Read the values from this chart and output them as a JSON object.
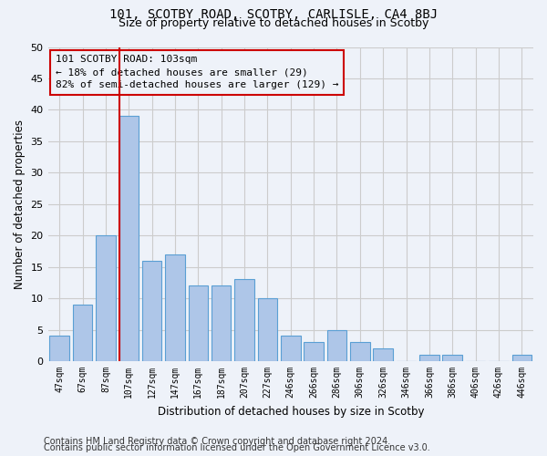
{
  "title_line1": "101, SCOTBY ROAD, SCOTBY, CARLISLE, CA4 8BJ",
  "title_line2": "Size of property relative to detached houses in Scotby",
  "xlabel": "Distribution of detached houses by size in Scotby",
  "ylabel": "Number of detached properties",
  "categories": [
    "47sqm",
    "67sqm",
    "87sqm",
    "107sqm",
    "127sqm",
    "147sqm",
    "167sqm",
    "187sqm",
    "207sqm",
    "227sqm",
    "246sqm",
    "266sqm",
    "286sqm",
    "306sqm",
    "326sqm",
    "346sqm",
    "366sqm",
    "386sqm",
    "406sqm",
    "426sqm",
    "446sqm"
  ],
  "values": [
    4,
    9,
    20,
    39,
    16,
    17,
    12,
    12,
    13,
    10,
    4,
    3,
    5,
    3,
    2,
    0,
    1,
    1,
    0,
    0,
    1
  ],
  "bar_color": "#aec6e8",
  "bar_edge_color": "#5a9fd4",
  "bar_edge_width": 0.8,
  "property_line_index": 3,
  "property_line_color": "#cc0000",
  "annotation_box_color": "#cc0000",
  "annotation_text_line1": "101 SCOTBY ROAD: 103sqm",
  "annotation_text_line2": "← 18% of detached houses are smaller (29)",
  "annotation_text_line3": "82% of semi-detached houses are larger (129) →",
  "annotation_fontsize": 8.0,
  "ylim": [
    0,
    50
  ],
  "yticks": [
    0,
    5,
    10,
    15,
    20,
    25,
    30,
    35,
    40,
    45,
    50
  ],
  "grid_color": "#cccccc",
  "background_color": "#eef2f9",
  "footer_line1": "Contains HM Land Registry data © Crown copyright and database right 2024.",
  "footer_line2": "Contains public sector information licensed under the Open Government Licence v3.0.",
  "footer_fontsize": 7.0
}
